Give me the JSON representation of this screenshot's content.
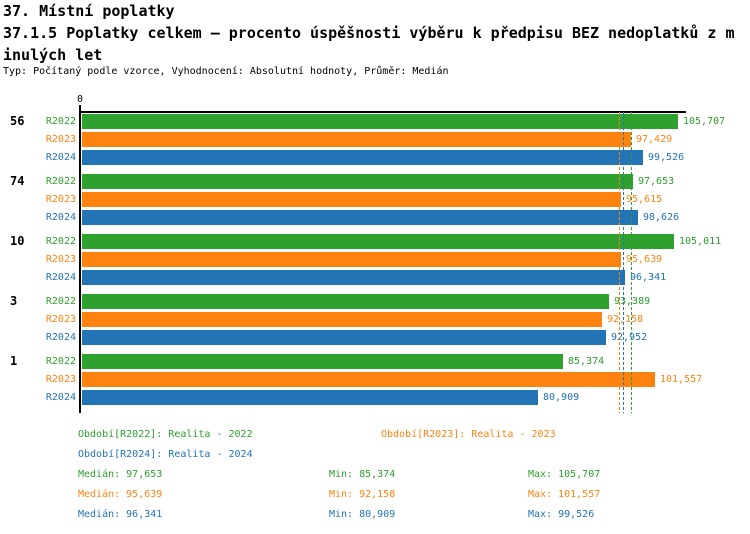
{
  "title": {
    "line1": "37. Místní poplatky",
    "line2": "37.1.5 Poplatky celkem – procento úspěšnosti výběru k předpisu BEZ nedoplatků z m",
    "line3": "inulých let",
    "meta": "Typ: Počítaný podle vzorce, Vyhodnocení: Absolutní hodnoty, Průměr: Medián"
  },
  "colors": {
    "r2022": "#2DA02D",
    "r2023": "#FD830E",
    "r2024": "#2374B5",
    "axis": "#000000",
    "background": "#FFFFFF"
  },
  "chart_data": {
    "type": "bar",
    "orientation": "horizontal",
    "title": "37.1.5 Poplatky celkem – procento úspěšnosti výběru k předpisu BEZ nedoplatků z minulých let",
    "axis_zero_label": "0",
    "xlim": [
      0,
      107000
    ],
    "grid": false,
    "categories": [
      "56",
      "74",
      "10",
      "3",
      "1"
    ],
    "series": [
      {
        "name": "R2022",
        "color": "#2DA02D",
        "values": [
          105707,
          97653,
          105011,
          93389,
          85374
        ],
        "labels": [
          "105,707",
          "97,653",
          "105,011",
          "93,389",
          "85,374"
        ],
        "median": 97653
      },
      {
        "name": "R2023",
        "color": "#FD830E",
        "values": [
          97429,
          95615,
          95639,
          92158,
          101557
        ],
        "labels": [
          "97,429",
          "95,615",
          "95,639",
          "92,158",
          "101,557"
        ],
        "median": 95639
      },
      {
        "name": "R2024",
        "color": "#2374B5",
        "values": [
          99526,
          98626,
          96341,
          92952,
          80909
        ],
        "labels": [
          "99,526",
          "98,626",
          "96,341",
          "92,952",
          "80,909"
        ],
        "median": 96341
      }
    ],
    "median_lines": [
      {
        "series": "R2022",
        "value": 97653,
        "color": "#2DA02D"
      },
      {
        "series": "R2023",
        "value": 95639,
        "color": "#FD830E"
      },
      {
        "series": "R2024",
        "value": 96341,
        "color": "#2374B5"
      }
    ]
  },
  "legend": [
    {
      "label": "Období[R2022]: Realita - 2022",
      "color": "#2DA02D",
      "row": 0,
      "col": 0
    },
    {
      "label": "Období[R2023]: Realita - 2023",
      "color": "#FD830E",
      "row": 0,
      "col": 1
    },
    {
      "label": "Období[R2024]: Realita - 2024",
      "color": "#2374B5",
      "row": 1,
      "col": 0
    }
  ],
  "stats": [
    {
      "series": "R2022",
      "color": "#2DA02D",
      "median": "Medián: 97,653",
      "min": "Min: 85,374",
      "max": "Max: 105,707"
    },
    {
      "series": "R2023",
      "color": "#FD830E",
      "median": "Medián: 95,639",
      "min": "Min: 92,158",
      "max": "Max: 101,557"
    },
    {
      "series": "R2024",
      "color": "#2374B5",
      "median": "Medián: 96,341",
      "min": "Min: 80,909",
      "max": "Max: 99,526"
    }
  ]
}
